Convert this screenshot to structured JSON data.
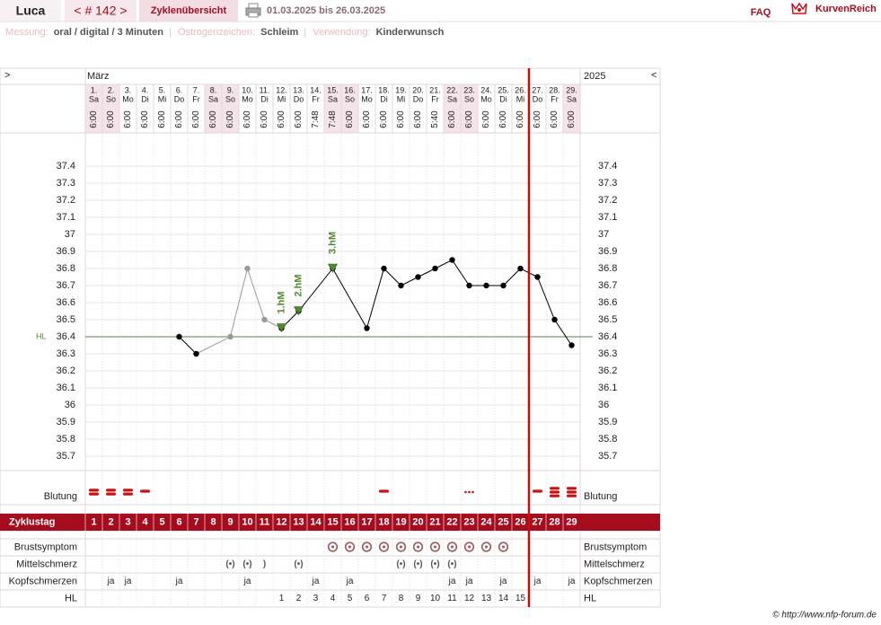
{
  "header": {
    "name": "Luca",
    "cycle": "< # 142 >",
    "tab": "Zyklenübersicht",
    "range": "01.03.2025 bis 26.03.2025",
    "faq": "FAQ",
    "brand": "KurvenReich"
  },
  "info": {
    "separator": "|",
    "items": [
      {
        "label": "Messung:",
        "value": "oral / digital / 3 Minuten"
      },
      {
        "label": "Östrogenzeichen:",
        "value": "Schleim"
      },
      {
        "label": "Verwendung:",
        "value": "Kinderwunsch"
      }
    ]
  },
  "nav": {
    "prev": ">",
    "next": "<",
    "month": "März",
    "year": "2025"
  },
  "days": {
    "labels": [
      "1.",
      "2.",
      "3.",
      "4.",
      "5.",
      "6.",
      "7.",
      "8.",
      "9.",
      "10.",
      "11.",
      "12.",
      "13.",
      "14.",
      "15.",
      "16.",
      "17.",
      "18.",
      "19.",
      "20.",
      "21.",
      "22.",
      "23.",
      "24.",
      "25.",
      "26.",
      "27.",
      "28.",
      "29."
    ],
    "weekdays": [
      "Sa",
      "So",
      "Mo",
      "Di",
      "Mi",
      "Do",
      "Fr",
      "Sa",
      "So",
      "Mo",
      "Di",
      "Mi",
      "Do",
      "Fr",
      "Sa",
      "So",
      "Mo",
      "Di",
      "Mi",
      "Do",
      "Fr",
      "Sa",
      "So",
      "Mo",
      "Di",
      "Mi",
      "Do",
      "Fr",
      "Sa"
    ],
    "times": [
      "6:00",
      "6:00",
      "6:00",
      "6:00",
      "6:00",
      "6:00",
      "6:00",
      "6:00",
      "6:00",
      "6:00",
      "6:00",
      "6:00",
      "6:00",
      "7:48",
      "7:48",
      "6:00",
      "6:00",
      "6:00",
      "6:00",
      "6:00",
      "5:40",
      "6:00",
      "6:00",
      "6:00",
      "6:00",
      "6:00",
      "6:00",
      "6:00",
      "6:00"
    ],
    "shaded_days": [
      1,
      2,
      8,
      9,
      15,
      16,
      22,
      23,
      29
    ]
  },
  "chart_data": {
    "type": "line",
    "xlim": [
      0.5,
      29.5
    ],
    "ylim": [
      35.6,
      37.6
    ],
    "yticks": [
      35.7,
      35.8,
      35.9,
      36,
      36.1,
      36.2,
      36.3,
      36.4,
      36.5,
      36.6,
      36.7,
      36.8,
      36.9,
      37,
      37.1,
      37.2,
      37.3,
      37.4
    ],
    "grid": true,
    "series": [
      {
        "color": "#999999",
        "x": [
          7,
          9,
          10,
          11,
          12
        ],
        "values": [
          36.3,
          36.4,
          36.8,
          36.5,
          36.45
        ]
      },
      {
        "color": "#000000",
        "x": [
          6,
          7
        ],
        "values": [
          36.4,
          36.3
        ]
      },
      {
        "color": "#000000",
        "x": [
          12,
          13,
          15,
          17,
          18,
          19,
          20,
          21,
          22,
          23,
          24,
          25,
          26,
          27,
          28,
          29
        ],
        "values": [
          36.45,
          36.55,
          36.8,
          36.45,
          36.8,
          36.7,
          36.75,
          36.8,
          36.85,
          36.7,
          36.7,
          36.7,
          36.8,
          36.75,
          36.5,
          36.35
        ]
      }
    ],
    "hline": {
      "label": "HL",
      "value": 36.4,
      "color": "#5a8a3a"
    },
    "annotations": [
      {
        "x": 12,
        "y": 36.45,
        "text": "1.hM"
      },
      {
        "x": 13,
        "y": 36.55,
        "text": "2.hM"
      },
      {
        "x": 15,
        "y": 36.8,
        "text": "3.hM"
      }
    ],
    "annotation_color": "#4e8a2e",
    "divider_x": 26.5
  },
  "rows": {
    "blutung": {
      "label": "Blutung",
      "values": [
        2,
        2,
        2,
        1,
        null,
        null,
        null,
        null,
        null,
        null,
        null,
        null,
        null,
        null,
        null,
        null,
        null,
        1,
        null,
        null,
        null,
        null,
        0,
        null,
        null,
        null,
        1,
        3,
        3
      ]
    },
    "zyklustag": {
      "label": "Zyklustag",
      "values": [
        1,
        2,
        3,
        4,
        5,
        6,
        7,
        8,
        9,
        10,
        11,
        12,
        13,
        14,
        15,
        16,
        17,
        18,
        19,
        20,
        21,
        22,
        23,
        24,
        25,
        26,
        27,
        28,
        29
      ]
    },
    "brustsymptom": {
      "label": "Brustsymptom",
      "values": [
        null,
        null,
        null,
        null,
        null,
        null,
        null,
        null,
        null,
        null,
        null,
        null,
        null,
        null,
        true,
        true,
        true,
        true,
        true,
        true,
        true,
        true,
        true,
        true,
        true,
        null,
        null,
        null,
        null
      ]
    },
    "mittelschmerz": {
      "label": "Mittelschmerz",
      "values": [
        null,
        null,
        null,
        null,
        null,
        null,
        null,
        null,
        "(•)",
        "(•)",
        ")",
        null,
        "(•)",
        null,
        null,
        null,
        null,
        null,
        "(•)",
        "(•)",
        "(•)",
        "(•)",
        null,
        null,
        null,
        null,
        null,
        null,
        null
      ]
    },
    "kopfschmerzen": {
      "label": "Kopfschmerzen",
      "values": [
        null,
        "ja",
        "ja",
        null,
        null,
        "ja",
        null,
        null,
        null,
        "ja",
        null,
        null,
        null,
        "ja",
        null,
        "ja",
        null,
        null,
        null,
        null,
        null,
        "ja",
        "ja",
        null,
        "ja",
        null,
        "ja",
        null,
        "ja"
      ]
    },
    "hl": {
      "label": "HL",
      "values": [
        null,
        null,
        null,
        null,
        null,
        null,
        null,
        null,
        null,
        null,
        null,
        1,
        2,
        3,
        4,
        5,
        6,
        7,
        8,
        9,
        10,
        11,
        12,
        13,
        14,
        15,
        null,
        null,
        null
      ]
    }
  },
  "footer": "© http://www.nfp-forum.de"
}
